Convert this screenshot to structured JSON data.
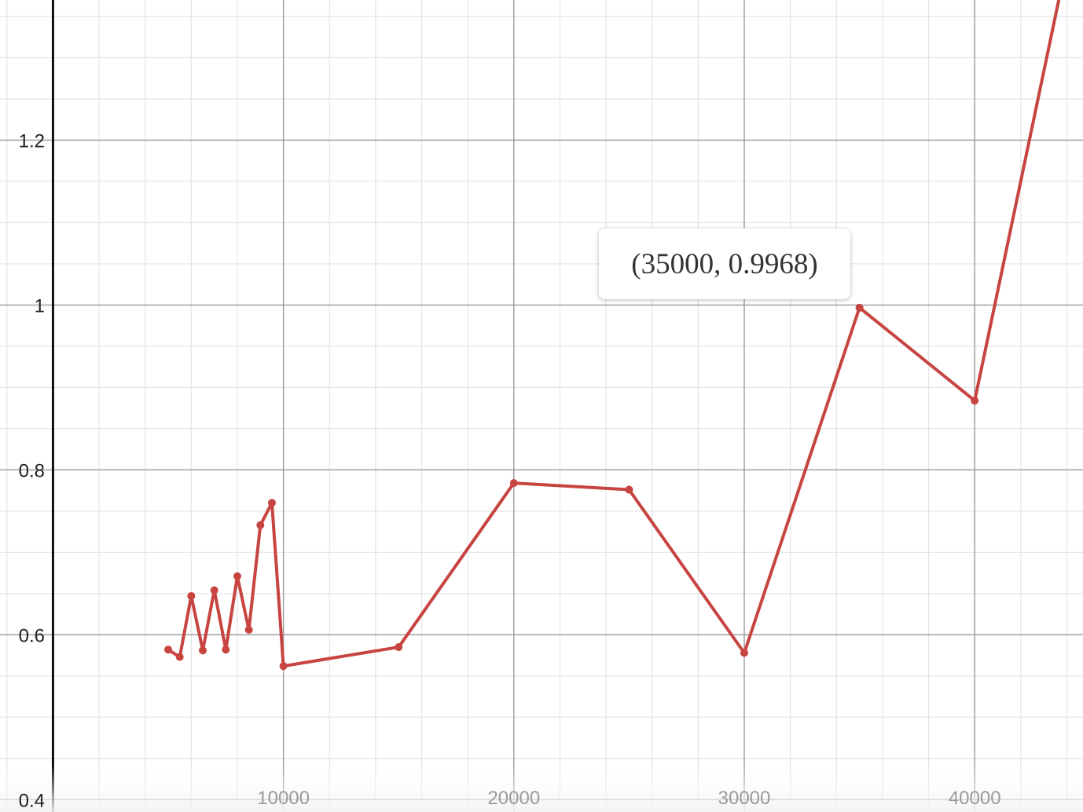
{
  "chart_data": {
    "type": "line",
    "series": [
      {
        "color": "#c74440",
        "x": [
          5000,
          5500,
          6000,
          6500,
          7000,
          7500,
          8000,
          8500,
          9000,
          9500,
          10000,
          15000,
          20000,
          25000,
          30000,
          35000,
          40000,
          45000
        ],
        "y": [
          0.582,
          0.573,
          0.647,
          0.581,
          0.654,
          0.582,
          0.671,
          0.606,
          0.733,
          0.76,
          0.562,
          0.585,
          0.784,
          0.776,
          0.578,
          0.9968,
          0.884,
          1.55
        ]
      }
    ],
    "x_ticks": [
      "10000",
      "20000",
      "30000",
      "40000"
    ],
    "y_ticks": [
      "0.4",
      "0.6",
      "0.8",
      "1",
      "1.2"
    ],
    "xlim": [
      -2300,
      44700
    ],
    "ylim": [
      0.385,
      1.37
    ],
    "grid": true,
    "tooltip": {
      "text": "(35000, 0.9968)",
      "x": 35000,
      "y": 0.9968
    }
  }
}
